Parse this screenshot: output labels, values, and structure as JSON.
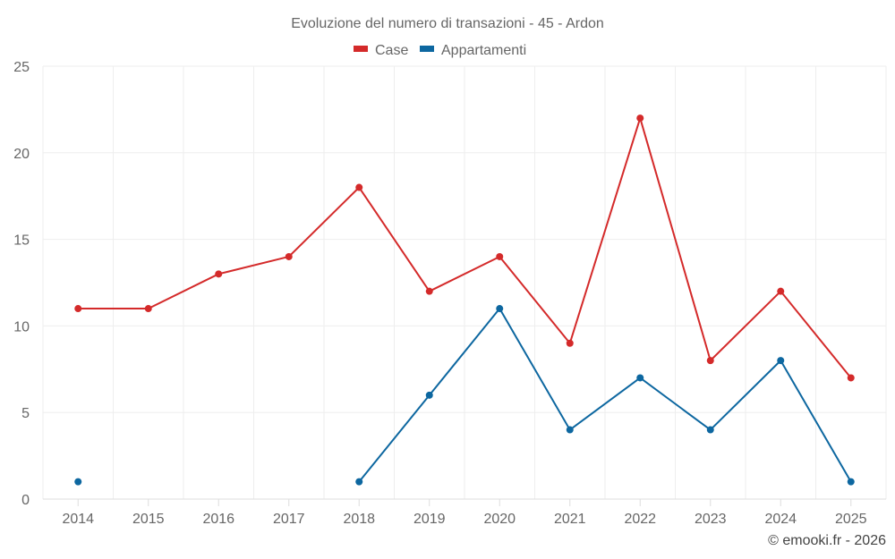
{
  "chart_data": {
    "type": "line",
    "title": "Evoluzione del numero di transazioni - 45 - Ardon",
    "categories": [
      "2014",
      "2015",
      "2016",
      "2017",
      "2018",
      "2019",
      "2020",
      "2021",
      "2022",
      "2023",
      "2024",
      "2025"
    ],
    "ylim": [
      0,
      25
    ],
    "yticks": [
      0,
      5,
      10,
      15,
      20,
      25
    ],
    "xlabel": "",
    "ylabel": "",
    "grid": true,
    "legend_position": "top-center",
    "series": [
      {
        "name": "Case",
        "color": "#d42a2a",
        "values": [
          11,
          11,
          13,
          14,
          18,
          12,
          14,
          9,
          22,
          8,
          12,
          7
        ]
      },
      {
        "name": "Appartamenti",
        "color": "#0d67a0",
        "values": [
          1,
          null,
          null,
          null,
          1,
          6,
          11,
          4,
          7,
          4,
          8,
          1
        ]
      }
    ]
  },
  "credit": "© emooki.fr - 2026"
}
